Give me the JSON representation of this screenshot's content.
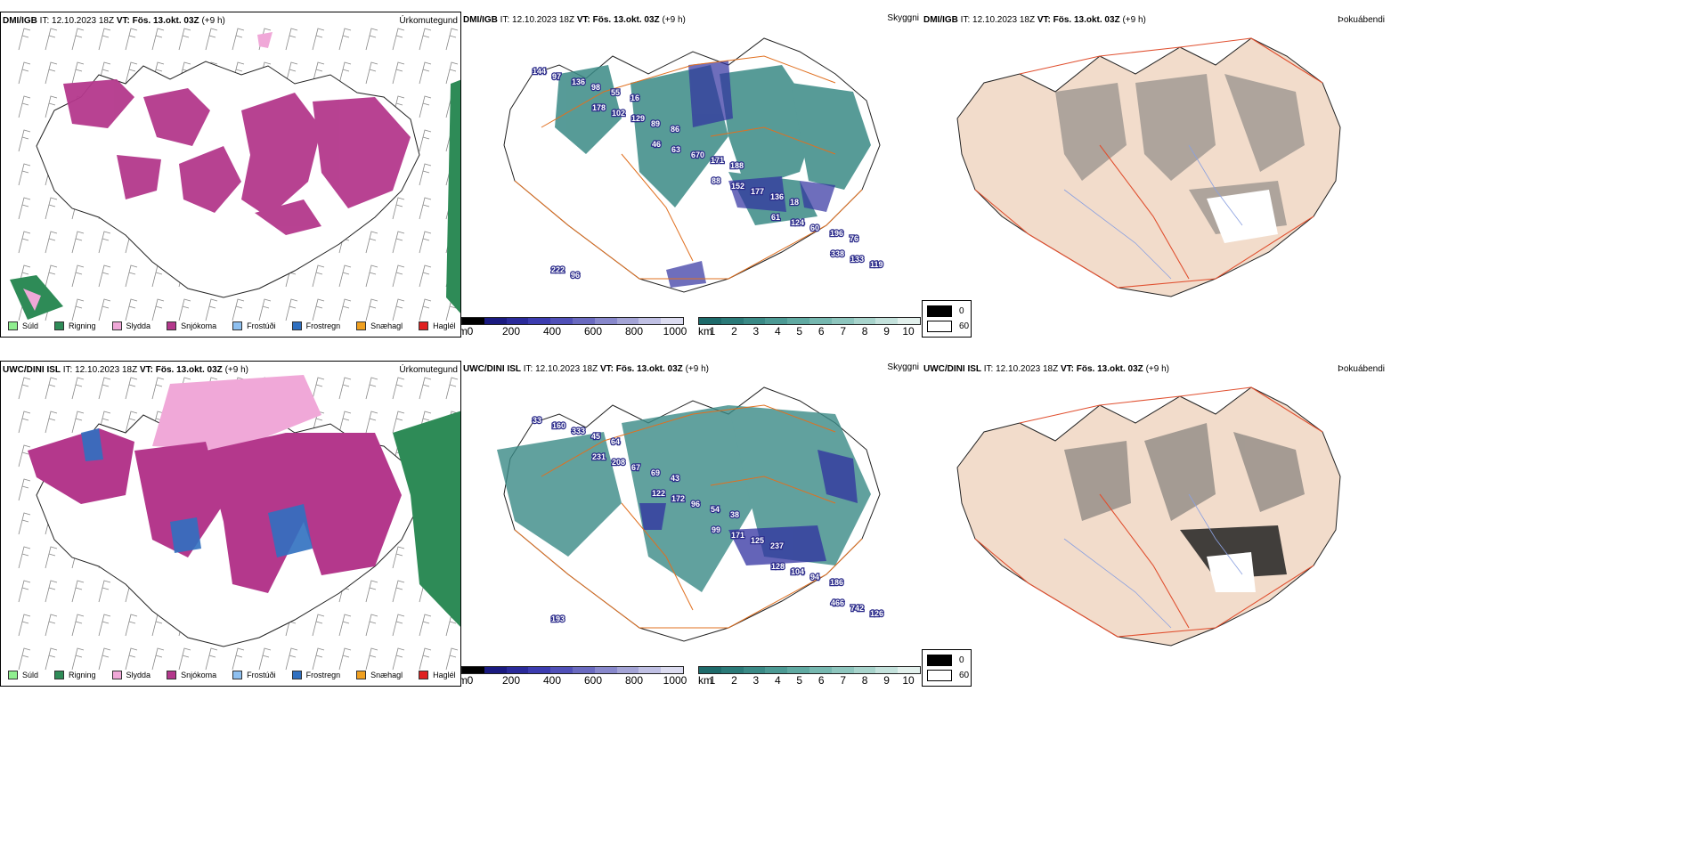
{
  "panels": {
    "top": {
      "header": {
        "model": "DMI/IGB",
        "it": "IT: 12.10.2023 18Z",
        "vt": "VT: Fös. 13.okt. 03Z",
        "lead": "(+9 h)"
      },
      "left_title": "Úrkomutegund",
      "mid_title": "Skyggni",
      "right_title": "Þokuábendi"
    },
    "bottom": {
      "header": {
        "model": "UWC/DINI ISL",
        "it": "IT: 12.10.2023 18Z",
        "vt": "VT: Fös. 13.okt. 03Z",
        "lead": "(+9 h)"
      },
      "left_title": "Úrkomutegund",
      "mid_title": "Skyggni",
      "right_title": "Þokuábendi"
    }
  },
  "precip_legend": [
    {
      "label": "Súld",
      "color": "#90ee90"
    },
    {
      "label": "Rigning",
      "color": "#2e8b57"
    },
    {
      "label": "Slydda",
      "color": "#f0a8d8"
    },
    {
      "label": "Snjókoma",
      "color": "#b4388c"
    },
    {
      "label": "Frostúði",
      "color": "#8ec0f0"
    },
    {
      "label": "Frostregn",
      "color": "#3070c0"
    },
    {
      "label": "Snæhagl",
      "color": "#f0a020"
    },
    {
      "label": "Haglél",
      "color": "#e02020"
    }
  ],
  "height_colorbar": {
    "unit": "m",
    "ticks": [
      "0",
      "200",
      "400",
      "600",
      "800",
      "1000"
    ],
    "colors": [
      "#000000",
      "#1a1a80",
      "#2a2a9a",
      "#3c3cb0",
      "#5050b8",
      "#6a6ac0",
      "#8888cc",
      "#a4a4d6",
      "#c0c0e4",
      "#dcdcf0"
    ]
  },
  "visibility_colorbar": {
    "unit": "km",
    "ticks": [
      "1",
      "2",
      "3",
      "4",
      "5",
      "6",
      "7",
      "8",
      "9",
      "10"
    ],
    "colors": [
      "#1d6a6a",
      "#2a7a78",
      "#3a8a86",
      "#4c9a94",
      "#60aaa2",
      "#76b8b0",
      "#8ec6be",
      "#a8d4cc",
      "#c4e2dc",
      "#e2f0ec"
    ]
  },
  "fog_legend": {
    "min": "0",
    "max": "60",
    "min_color": "#000000",
    "max_color": "#ffffff"
  },
  "cloud_labels_top": [
    "144",
    "178",
    "46",
    "88",
    "61",
    "338",
    "97",
    "102",
    "63",
    "152",
    "124",
    "133",
    "136",
    "129",
    "670",
    "177",
    "60",
    "119",
    "98",
    "89",
    "171",
    "136",
    "196",
    "222",
    "55",
    "86",
    "188",
    "18",
    "76",
    "96",
    "16"
  ],
  "cloud_labels_bottom": [
    "33",
    "231",
    "122",
    "99",
    "128",
    "466",
    "160",
    "208",
    "172",
    "171",
    "104",
    "742",
    "333",
    "67",
    "96",
    "125",
    "94",
    "126",
    "45",
    "69",
    "54",
    "237",
    "186",
    "193",
    "64",
    "43",
    "38"
  ]
}
